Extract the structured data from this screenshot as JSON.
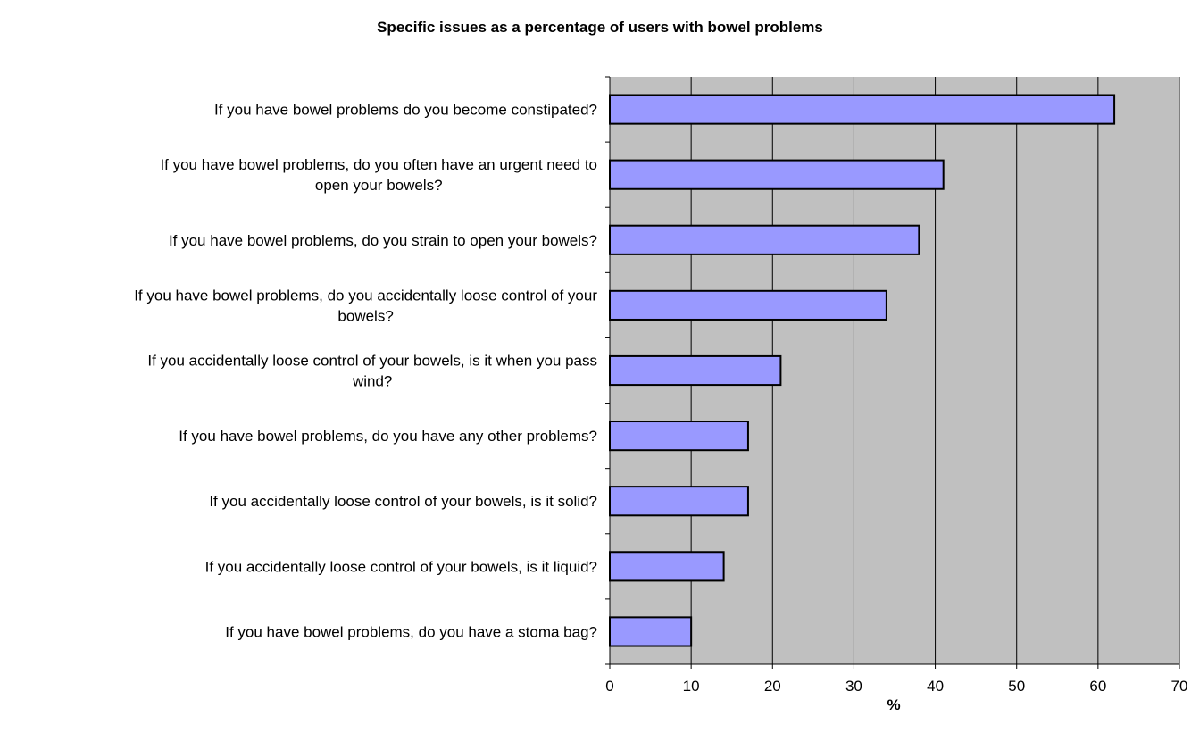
{
  "chart_data": {
    "type": "bar",
    "orientation": "horizontal",
    "title": "Specific issues as a percentage of users with bowel problems",
    "xlabel": "%",
    "ylabel": "",
    "xlim": [
      0,
      70
    ],
    "xticks": [
      0,
      10,
      20,
      30,
      40,
      50,
      60,
      70
    ],
    "grid": true,
    "legend": "none",
    "categories": [
      [
        "If you have bowel problems do you become constipated?"
      ],
      [
        "If you have bowel problems, do you often have an urgent need to",
        "open your bowels?"
      ],
      [
        "If you have bowel problems, do you strain to open your bowels?"
      ],
      [
        "If you have bowel problems, do you accidentally loose control of your",
        "bowels?"
      ],
      [
        "If you accidentally loose control of your bowels, is it when you pass",
        "wind?"
      ],
      [
        "If you have bowel problems, do you have any other problems?"
      ],
      [
        "If you accidentally loose control of your bowels, is it solid?"
      ],
      [
        "If you accidentally loose control of your bowels, is it liquid?"
      ],
      [
        "If you have bowel problems, do you have a stoma bag?"
      ]
    ],
    "values": [
      62,
      41,
      38,
      34,
      21,
      17,
      17,
      14,
      10
    ],
    "colors": {
      "bar": "#9999ff",
      "bar_edge": "#000000",
      "plot_bg": "#c0c0c0",
      "grid": "#000000"
    }
  }
}
